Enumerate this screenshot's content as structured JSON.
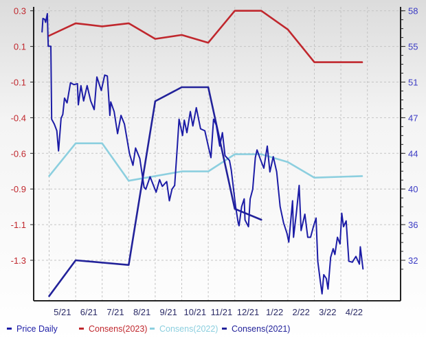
{
  "chart_data": {
    "type": "line",
    "title": "",
    "colors": {
      "price_daily": "#1c1ca6",
      "consens_2023": "#c0272d",
      "consens_2022": "#8ccfdf",
      "consens_2021": "#22229a",
      "left_axis_labels": "#c0272d",
      "right_axis_labels": "#3b3bc4"
    },
    "x_axis": {
      "type": "date",
      "range": [
        "2021-05-01",
        "2022-05-01"
      ],
      "tick_labels": [
        "5/21",
        "6/21",
        "7/21",
        "8/21",
        "9/21",
        "10/21",
        "11/21",
        "12/21",
        "1/22",
        "2/22",
        "3/22",
        "4/22"
      ]
    },
    "left_axis": {
      "tick_labels": [
        "0.3",
        "0.1",
        "-0.1",
        "-0.4",
        "-0.6",
        "-0.9",
        "-1.1",
        "-1.3"
      ],
      "ylim": [
        -1.3,
        0.3
      ]
    },
    "right_axis": {
      "tick_labels": [
        "58",
        "55",
        "51",
        "47",
        "44",
        "40",
        "36",
        "32"
      ],
      "ylim": [
        32,
        58
      ]
    },
    "grid": true,
    "legend": {
      "position": "bottom",
      "items": [
        "Price Daily",
        "Consens(2023)",
        "Consens(2022)",
        "Consens(2021)"
      ]
    },
    "series": [
      {
        "name": "Price Daily",
        "axis": "right",
        "points": [
          [
            "2021-04-23",
            55.8
          ],
          [
            "2021-04-24",
            57.2
          ],
          [
            "2021-04-26",
            57.1
          ],
          [
            "2021-04-27",
            56.8
          ],
          [
            "2021-04-29",
            57.7
          ],
          [
            "2021-04-30",
            54.3
          ],
          [
            "2021-05-03",
            54.3
          ],
          [
            "2021-05-04",
            46.7
          ],
          [
            "2021-05-07",
            46.2
          ],
          [
            "2021-05-10",
            45.5
          ],
          [
            "2021-05-12",
            43.4
          ],
          [
            "2021-05-15",
            46.8
          ],
          [
            "2021-05-17",
            47.2
          ],
          [
            "2021-05-19",
            48.9
          ],
          [
            "2021-05-22",
            48.4
          ],
          [
            "2021-05-26",
            50.5
          ],
          [
            "2021-05-30",
            50.3
          ],
          [
            "2021-06-03",
            50.4
          ],
          [
            "2021-06-04",
            48.2
          ],
          [
            "2021-06-07",
            50.2
          ],
          [
            "2021-06-10",
            48.6
          ],
          [
            "2021-06-14",
            50.2
          ],
          [
            "2021-06-18",
            48.6
          ],
          [
            "2021-06-22",
            47.7
          ],
          [
            "2021-06-25",
            51.1
          ],
          [
            "2021-06-30",
            49.7
          ],
          [
            "2021-07-04",
            51.3
          ],
          [
            "2021-07-07",
            51.2
          ],
          [
            "2021-07-10",
            47.1
          ],
          [
            "2021-07-11",
            48.5
          ],
          [
            "2021-07-15",
            47.5
          ],
          [
            "2021-07-19",
            45.2
          ],
          [
            "2021-07-23",
            47.1
          ],
          [
            "2021-07-27",
            46.2
          ],
          [
            "2021-08-02",
            43.1
          ],
          [
            "2021-08-06",
            41.9
          ],
          [
            "2021-08-09",
            43.7
          ],
          [
            "2021-08-14",
            42.6
          ],
          [
            "2021-08-19",
            39.6
          ],
          [
            "2021-08-21",
            39.4
          ],
          [
            "2021-08-26",
            40.7
          ],
          [
            "2021-09-02",
            39.1
          ],
          [
            "2021-09-06",
            40.4
          ],
          [
            "2021-09-09",
            39.7
          ],
          [
            "2021-09-14",
            40.2
          ],
          [
            "2021-09-17",
            38.2
          ],
          [
            "2021-09-20",
            39.4
          ],
          [
            "2021-09-23",
            39.8
          ],
          [
            "2021-09-26",
            43.9
          ],
          [
            "2021-09-28",
            46.7
          ],
          [
            "2021-10-02",
            45.0
          ],
          [
            "2021-10-04",
            46.6
          ],
          [
            "2021-10-07",
            45.3
          ],
          [
            "2021-10-11",
            47.5
          ],
          [
            "2021-10-14",
            46.0
          ],
          [
            "2021-10-18",
            47.9
          ],
          [
            "2021-10-23",
            45.7
          ],
          [
            "2021-10-28",
            45.5
          ],
          [
            "2021-11-01",
            43.9
          ],
          [
            "2021-11-04",
            42.7
          ],
          [
            "2021-11-07",
            46.7
          ],
          [
            "2021-11-10",
            46.1
          ],
          [
            "2021-11-14",
            43.9
          ],
          [
            "2021-11-17",
            45.3
          ],
          [
            "2021-11-20",
            42.9
          ],
          [
            "2021-11-25",
            42.4
          ],
          [
            "2021-11-27",
            41.4
          ],
          [
            "2021-12-02",
            37.6
          ],
          [
            "2021-12-05",
            35.9
          ],
          [
            "2021-12-06",
            35.6
          ],
          [
            "2021-12-09",
            37.6
          ],
          [
            "2021-12-12",
            38.4
          ],
          [
            "2021-12-13",
            36.2
          ],
          [
            "2021-12-17",
            35.5
          ],
          [
            "2021-12-19",
            38.4
          ],
          [
            "2021-12-22",
            39.4
          ],
          [
            "2021-12-25",
            42.7
          ],
          [
            "2021-12-27",
            43.5
          ],
          [
            "2021-12-31",
            42.5
          ],
          [
            "2022-01-04",
            41.6
          ],
          [
            "2022-01-08",
            43.9
          ],
          [
            "2022-01-11",
            41.2
          ],
          [
            "2022-01-15",
            42.8
          ],
          [
            "2022-01-19",
            41.2
          ],
          [
            "2022-01-23",
            37.6
          ],
          [
            "2022-01-27",
            35.9
          ],
          [
            "2022-01-31",
            34.8
          ],
          [
            "2022-02-02",
            33.9
          ],
          [
            "2022-02-06",
            38.2
          ],
          [
            "2022-02-07",
            34.4
          ],
          [
            "2022-02-10",
            36.9
          ],
          [
            "2022-02-13",
            39.8
          ],
          [
            "2022-02-15",
            35.1
          ],
          [
            "2022-02-19",
            36.8
          ],
          [
            "2022-02-22",
            34.4
          ],
          [
            "2022-02-25",
            34.4
          ],
          [
            "2022-02-28",
            35.5
          ],
          [
            "2022-03-03",
            36.4
          ],
          [
            "2022-03-05",
            31.9
          ],
          [
            "2022-03-08",
            29.8
          ],
          [
            "2022-03-10",
            28.5
          ],
          [
            "2022-03-12",
            30.5
          ],
          [
            "2022-03-15",
            30.1
          ],
          [
            "2022-03-17",
            29.0
          ],
          [
            "2022-03-20",
            32.3
          ],
          [
            "2022-03-23",
            33.2
          ],
          [
            "2022-03-25",
            32.6
          ],
          [
            "2022-03-28",
            34.4
          ],
          [
            "2022-03-31",
            33.7
          ],
          [
            "2022-04-02",
            36.9
          ],
          [
            "2022-04-04",
            35.5
          ],
          [
            "2022-04-07",
            36.1
          ],
          [
            "2022-04-10",
            31.9
          ],
          [
            "2022-04-14",
            31.8
          ],
          [
            "2022-04-18",
            32.4
          ],
          [
            "2022-04-22",
            31.6
          ],
          [
            "2022-04-23",
            33.4
          ],
          [
            "2022-04-26",
            31.1
          ]
        ]
      },
      {
        "name": "Consens(2023)",
        "axis": "left",
        "points": [
          [
            "2021-05-01",
            0.14
          ],
          [
            "2021-06-01",
            0.22
          ],
          [
            "2021-07-01",
            0.2
          ],
          [
            "2021-08-01",
            0.22
          ],
          [
            "2021-09-01",
            0.12
          ],
          [
            "2021-10-01",
            0.145
          ],
          [
            "2021-11-01",
            0.095
          ],
          [
            "2021-12-01",
            0.3
          ],
          [
            "2022-01-01",
            0.3
          ],
          [
            "2022-02-01",
            0.18
          ],
          [
            "2022-03-01",
            -0.03
          ],
          [
            "2022-04-25",
            -0.03
          ]
        ]
      },
      {
        "name": "Consens(2022)",
        "axis": "left",
        "points": [
          [
            "2021-05-01",
            -0.76
          ],
          [
            "2021-06-01",
            -0.55
          ],
          [
            "2021-07-01",
            -0.55
          ],
          [
            "2021-08-01",
            -0.79
          ],
          [
            "2021-10-01",
            -0.73
          ],
          [
            "2021-11-01",
            -0.73
          ],
          [
            "2021-12-01",
            -0.62
          ],
          [
            "2022-01-01",
            -0.62
          ],
          [
            "2022-02-01",
            -0.67
          ],
          [
            "2022-03-01",
            -0.77
          ],
          [
            "2022-04-25",
            -0.76
          ]
        ]
      },
      {
        "name": "Consens(2021)",
        "axis": "left",
        "points": [
          [
            "2021-05-01",
            -1.53
          ],
          [
            "2021-06-01",
            -1.3
          ],
          [
            "2021-08-01",
            -1.33
          ],
          [
            "2021-09-01",
            -0.28
          ],
          [
            "2021-10-01",
            -0.19
          ],
          [
            "2021-11-01",
            -0.19
          ],
          [
            "2021-12-01",
            -0.97
          ],
          [
            "2022-01-01",
            -1.04
          ]
        ]
      }
    ]
  }
}
